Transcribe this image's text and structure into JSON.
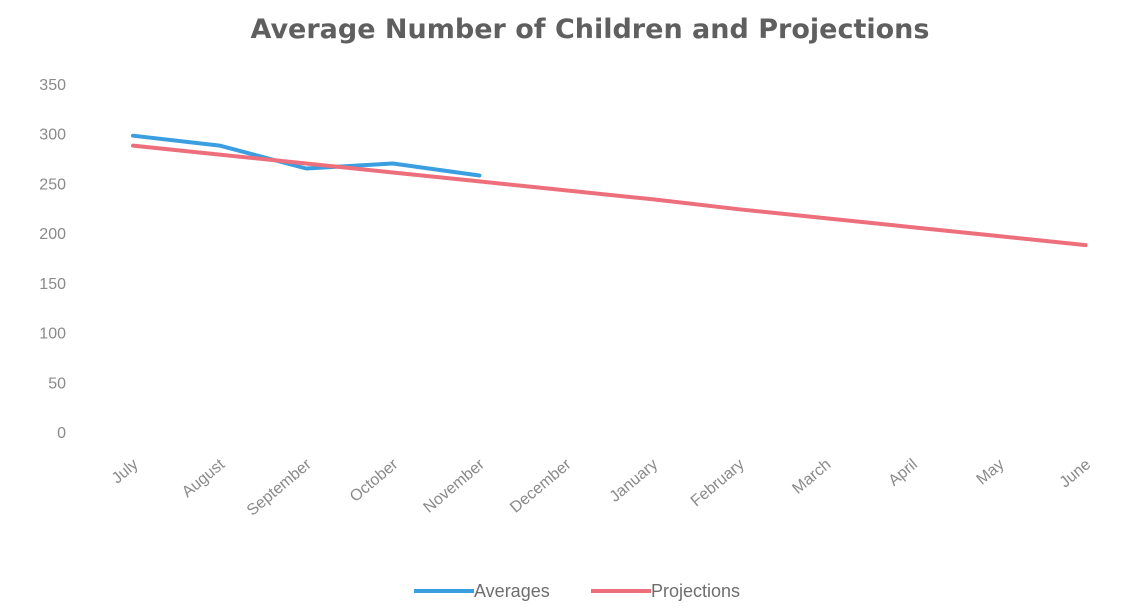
{
  "colors": {
    "averages": "#3a9ee0",
    "projections": "#ee6f7c",
    "text": "#8a8a8a",
    "title": "#5f5f5f"
  },
  "chart_data": {
    "type": "line",
    "title": "Average Number of Children and Projections",
    "categories": [
      "July",
      "August",
      "September",
      "October",
      "November",
      "December",
      "January",
      "February",
      "March",
      "April",
      "May",
      "June"
    ],
    "yticks": [
      0,
      50,
      100,
      150,
      200,
      250,
      300,
      350
    ],
    "ylim": [
      0,
      350
    ],
    "grid": false,
    "legend_position": "bottom",
    "series": [
      {
        "name": "Averages",
        "color": "#3a9ee0",
        "values": [
          298,
          288,
          265,
          270,
          258,
          null,
          null,
          null,
          null,
          null,
          null,
          null
        ]
      },
      {
        "name": "Projections",
        "color": "#ee6f7c",
        "values": [
          288,
          279,
          270,
          261,
          252,
          243,
          234,
          224,
          215,
          206,
          197,
          188
        ]
      }
    ]
  }
}
